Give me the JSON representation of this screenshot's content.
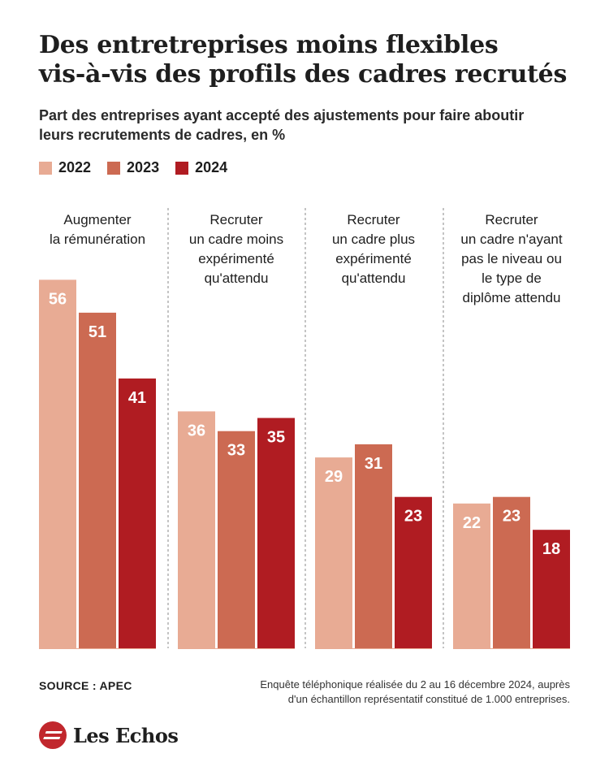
{
  "title_line1": "Des entretreprises moins flexibles",
  "title_line2": "vis-à-vis des profils des cadres recrutés",
  "subtitle_line1": "Part des entreprises ayant accepté des ajustements pour faire aboutir",
  "subtitle_line2": "leurs recrutements de cadres, en %",
  "colors": {
    "2022": "#e8ab94",
    "2023": "#cc6a52",
    "2024": "#b01c22",
    "label_light": "#ffffff"
  },
  "legend": [
    "2022",
    "2023",
    "2024"
  ],
  "source": "SOURCE : APEC",
  "note_line1": "Enquête téléphonique réalisée du 2 au 16 décembre 2024, auprès",
  "note_line2": "d'un échantillon représentatif constitué de 1.000 entreprises.",
  "brand": {
    "name": "Les Echos",
    "icon": "les-echos-logo-icon"
  },
  "chart_data": {
    "type": "bar",
    "categories": [
      [
        "Augmenter",
        "la rémunération"
      ],
      [
        "Recruter",
        "un cadre moins",
        "expérimenté",
        "qu'attendu"
      ],
      [
        "Recruter",
        "un cadre plus",
        "expérimenté",
        "qu'attendu"
      ],
      [
        "Recruter",
        "un cadre n'ayant",
        "pas le niveau ou",
        "le type de",
        "diplôme attendu"
      ]
    ],
    "series": [
      {
        "name": "2022",
        "values": [
          56,
          36,
          29,
          22
        ]
      },
      {
        "name": "2023",
        "values": [
          51,
          33,
          31,
          23
        ]
      },
      {
        "name": "2024",
        "values": [
          41,
          35,
          23,
          18
        ]
      }
    ],
    "ylim": [
      0,
      56
    ],
    "grid": false,
    "legend_position": "top-left",
    "unit": "%"
  }
}
